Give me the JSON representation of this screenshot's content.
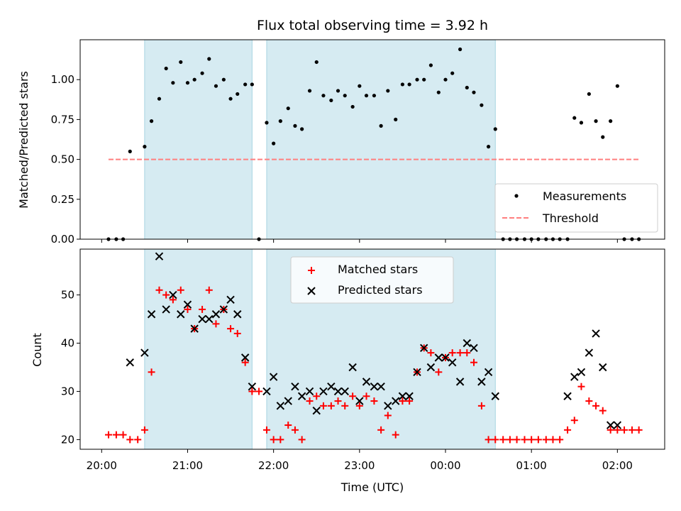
{
  "chart_data": [
    {
      "type": "scatter",
      "title": "Flux total observing time = 3.92 h",
      "ylabel": "Matched/Predicted stars",
      "xlabel": "",
      "ylim": [
        0,
        1.25
      ],
      "yticks": [
        0,
        0.25,
        0.5,
        0.75,
        1.0
      ],
      "ytick_labels": [
        "0.00",
        "0.25",
        "0.50",
        "0.75",
        "1.00"
      ],
      "legend_position": "lower-right",
      "shaded_intervals_hours": [
        [
          20.5,
          21.75
        ],
        [
          21.92,
          24.58
        ]
      ],
      "threshold": {
        "name": "Threshold",
        "value": 0.5,
        "x_range": [
          20.08,
          26.25
        ]
      },
      "series": [
        {
          "name": "Measurements",
          "x": [
            20.08,
            20.17,
            20.25,
            20.33,
            20.5,
            20.58,
            20.67,
            20.75,
            20.83,
            20.92,
            21.0,
            21.08,
            21.17,
            21.25,
            21.33,
            21.42,
            21.5,
            21.58,
            21.67,
            21.75,
            21.83,
            21.92,
            22.0,
            22.08,
            22.17,
            22.25,
            22.33,
            22.42,
            22.5,
            22.58,
            22.67,
            22.75,
            22.83,
            22.92,
            23.0,
            23.08,
            23.17,
            23.25,
            23.33,
            23.42,
            23.5,
            23.58,
            23.67,
            23.75,
            23.83,
            23.92,
            24.0,
            24.08,
            24.17,
            24.25,
            24.33,
            24.42,
            24.5,
            24.58,
            24.67,
            24.75,
            24.83,
            24.92,
            25.0,
            25.08,
            25.17,
            25.25,
            25.33,
            25.42,
            25.5,
            25.58,
            25.67,
            25.75,
            25.83,
            25.92,
            26.0,
            26.08,
            26.17,
            26.25
          ],
          "y": [
            0,
            0,
            0,
            0.55,
            0.58,
            0.74,
            0.88,
            1.07,
            0.98,
            1.11,
            0.98,
            1.0,
            1.04,
            1.13,
            0.96,
            1.0,
            0.88,
            0.91,
            0.97,
            0.97,
            0,
            0.73,
            0.6,
            0.74,
            0.82,
            0.71,
            0.69,
            0.93,
            1.11,
            0.9,
            0.87,
            0.93,
            0.9,
            0.83,
            0.96,
            0.9,
            0.9,
            0.71,
            0.93,
            0.75,
            0.97,
            0.97,
            1.0,
            1.0,
            1.09,
            0.92,
            1.0,
            1.04,
            1.19,
            0.95,
            0.92,
            0.84,
            0.58,
            0.69,
            0,
            0,
            0,
            0,
            0,
            0,
            0,
            0,
            0,
            0,
            0.76,
            0.73,
            0.91,
            0.74,
            0.64,
            0.74,
            0.96,
            0,
            0,
            0
          ]
        }
      ]
    },
    {
      "type": "scatter",
      "title": "",
      "ylabel": "Count",
      "xlabel": "Time (UTC)",
      "ylim": [
        18,
        59.5
      ],
      "yticks": [
        20,
        30,
        40,
        50
      ],
      "ytick_labels": [
        "20",
        "30",
        "40",
        "50"
      ],
      "xlim_hours": [
        19.75,
        26.55
      ],
      "xticks_hours": [
        20,
        21,
        22,
        23,
        24,
        25,
        26
      ],
      "xtick_labels": [
        "20:00",
        "21:00",
        "22:00",
        "23:00",
        "00:00",
        "01:00",
        "02:00"
      ],
      "legend_position": "upper-center",
      "shaded_intervals_hours": [
        [
          20.5,
          21.75
        ],
        [
          21.92,
          24.58
        ]
      ],
      "series": [
        {
          "name": "Matched stars",
          "color": "#ff0000",
          "marker": "plus",
          "x": [
            20.08,
            20.17,
            20.25,
            20.33,
            20.42,
            20.5,
            20.58,
            20.67,
            20.75,
            20.83,
            20.92,
            21.0,
            21.08,
            21.17,
            21.25,
            21.33,
            21.42,
            21.5,
            21.58,
            21.67,
            21.75,
            21.83,
            21.92,
            22.0,
            22.08,
            22.17,
            22.25,
            22.33,
            22.42,
            22.5,
            22.58,
            22.67,
            22.75,
            22.83,
            22.92,
            23.0,
            23.08,
            23.17,
            23.25,
            23.33,
            23.42,
            23.5,
            23.58,
            23.67,
            23.75,
            23.83,
            23.92,
            24.0,
            24.08,
            24.17,
            24.25,
            24.33,
            24.42,
            24.5,
            24.58,
            24.67,
            24.75,
            24.83,
            24.92,
            25.0,
            25.08,
            25.17,
            25.25,
            25.33,
            25.42,
            25.5,
            25.58,
            25.67,
            25.75,
            25.83,
            25.92,
            26.0,
            26.08,
            26.17,
            26.25
          ],
          "y": [
            21,
            21,
            21,
            20,
            20,
            22,
            34,
            51,
            50,
            49,
            51,
            47,
            43,
            47,
            51,
            44,
            47,
            43,
            42,
            36,
            30,
            30,
            22,
            20,
            20,
            23,
            22,
            20,
            28,
            29,
            27,
            27,
            28,
            27,
            29,
            27,
            29,
            28,
            22,
            25,
            21,
            28,
            28,
            34,
            39,
            38,
            34,
            37,
            38,
            38,
            38,
            36,
            27,
            20,
            20,
            20,
            20,
            20,
            20,
            20,
            20,
            20,
            20,
            20,
            22,
            24,
            31,
            28,
            27,
            26,
            22,
            22,
            22,
            22,
            22
          ]
        },
        {
          "name": "Predicted stars",
          "color": "#000000",
          "marker": "x",
          "x": [
            20.33,
            20.5,
            20.58,
            20.67,
            20.75,
            20.83,
            20.92,
            21.0,
            21.08,
            21.17,
            21.25,
            21.33,
            21.42,
            21.5,
            21.58,
            21.67,
            21.75,
            21.92,
            22.0,
            22.08,
            22.17,
            22.25,
            22.33,
            22.42,
            22.5,
            22.58,
            22.67,
            22.75,
            22.83,
            22.92,
            23.0,
            23.08,
            23.17,
            23.25,
            23.33,
            23.42,
            23.5,
            23.58,
            23.67,
            23.75,
            23.83,
            23.92,
            24.0,
            24.08,
            24.17,
            24.25,
            24.33,
            24.42,
            24.5,
            24.58,
            25.42,
            25.5,
            25.58,
            25.67,
            25.75,
            25.83,
            25.92,
            26.0
          ],
          "y": [
            36,
            38,
            46,
            58,
            47,
            50,
            46,
            48,
            43,
            45,
            45,
            46,
            47,
            49,
            46,
            37,
            31,
            30,
            33,
            27,
            28,
            31,
            29,
            30,
            26,
            30,
            31,
            30,
            30,
            35,
            28,
            32,
            31,
            31,
            27,
            28,
            29,
            29,
            34,
            39,
            35,
            37,
            37,
            36,
            32,
            40,
            39,
            32,
            34,
            29,
            29,
            33,
            34,
            38,
            42,
            35,
            23,
            23
          ]
        }
      ]
    }
  ]
}
